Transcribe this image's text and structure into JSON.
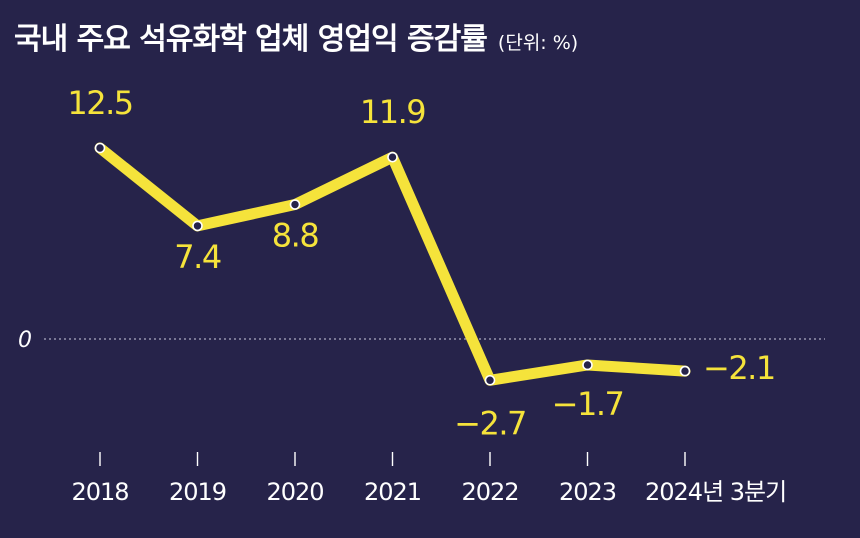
{
  "colors": {
    "background": "#26234a",
    "line": "#f5e33b",
    "text": "#ffffff",
    "label": "#f5e33b",
    "zero_line": "#cfcfe0"
  },
  "chart_data": {
    "type": "line",
    "title": "국내 주요 석유화학 업체 영업익 증감률",
    "unit": "(단위: %)",
    "categories": [
      "2018",
      "2019",
      "2020",
      "2021",
      "2022",
      "2023",
      "2024년 3분기"
    ],
    "series": [
      {
        "values": [
          12.5,
          7.4,
          8.8,
          11.9,
          -2.7,
          -1.7,
          -2.1
        ]
      }
    ],
    "value_labels": [
      "12.5",
      "7.4",
      "8.8",
      "11.9",
      "−2.7",
      "−1.7",
      "−2.1"
    ],
    "zero_label": "0",
    "ylim": [
      -4.5,
      16
    ],
    "grid": false,
    "legend": "none"
  }
}
